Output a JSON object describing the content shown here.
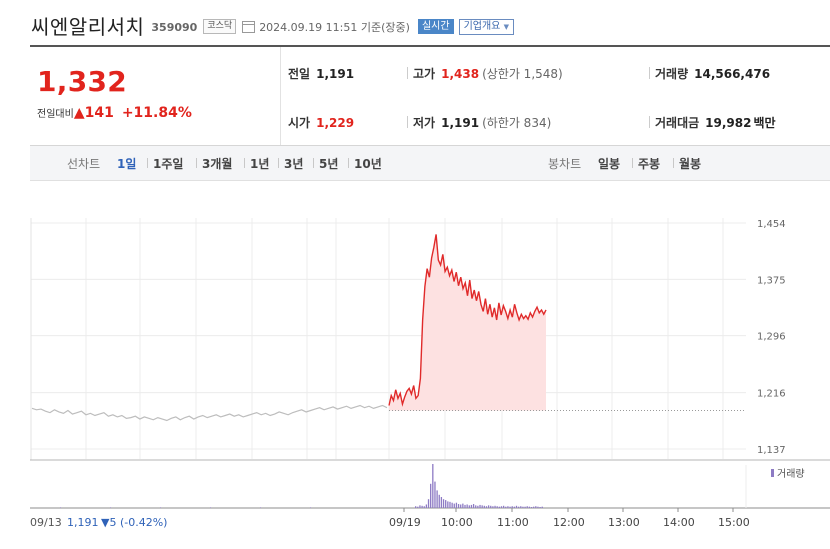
{
  "header": {
    "name": "씨엔알리서치",
    "code": "359090",
    "market": "코스닥",
    "datetime": "2024.09.19 11:51",
    "basis": "기준(장중)",
    "realtime_label": "실시간",
    "company_info_label": "기업개요"
  },
  "quote": {
    "price": "1,332",
    "change_label": "전일대비",
    "change_value": "141",
    "change_pct": "+11.84%",
    "prev_close": {
      "label": "전일",
      "value": "1,191"
    },
    "open": {
      "label": "시가",
      "value": "1,229"
    },
    "high": {
      "label": "고가",
      "value": "1,438",
      "sub": "(상한가 1,548)"
    },
    "low": {
      "label": "저가",
      "value": "1,191",
      "sub": "(하한가 834)"
    },
    "volume": {
      "label": "거래량",
      "value": "14,566,476"
    },
    "trade_value": {
      "label": "거래대금",
      "value": "19,982",
      "unit": "백만"
    },
    "colors": {
      "up": "#e1241d",
      "down": "#2f62b8"
    }
  },
  "tabs": {
    "line_label": "선차트",
    "line": [
      "1일",
      "1주일",
      "3개월",
      "1년",
      "3년",
      "5년",
      "10년"
    ],
    "active": "1일",
    "candle_label": "봉차트",
    "candle": [
      "일봉",
      "주봉",
      "월봉"
    ]
  },
  "chart_data": {
    "type": "line",
    "y_ticks": [
      "1,454",
      "1,375",
      "1,296",
      "1,216",
      "1,137"
    ],
    "ylim": [
      1137,
      1454
    ],
    "baseline": 1191,
    "prev_day": {
      "date_label": "09/13",
      "close": "1,191",
      "change": "▼5 (-0.42%)",
      "values": [
        1194,
        1192,
        1193,
        1190,
        1188,
        1192,
        1189,
        1187,
        1191,
        1186,
        1188,
        1190,
        1185,
        1187,
        1184,
        1186,
        1188,
        1183,
        1185,
        1182,
        1184,
        1180,
        1181,
        1183,
        1179,
        1182,
        1180,
        1178,
        1181,
        1179,
        1177,
        1180,
        1182,
        1178,
        1181,
        1183,
        1179,
        1182,
        1184,
        1181,
        1183,
        1185,
        1182,
        1184,
        1186,
        1183,
        1185,
        1182,
        1184,
        1186,
        1188,
        1185,
        1187,
        1184,
        1186,
        1189,
        1187,
        1185,
        1188,
        1190,
        1192,
        1189,
        1191,
        1193,
        1195,
        1192,
        1194,
        1196,
        1193,
        1195,
        1197,
        1194,
        1196,
        1198,
        1195,
        1197,
        1194,
        1196,
        1198,
        1195
      ]
    },
    "today": {
      "date_label": "09/19",
      "values": [
        1198,
        1212,
        1205,
        1220,
        1208,
        1215,
        1200,
        1210,
        1218,
        1222,
        1214,
        1226,
        1208,
        1212,
        1236,
        1318,
        1365,
        1390,
        1378,
        1405,
        1420,
        1438,
        1402,
        1395,
        1410,
        1386,
        1392,
        1380,
        1388,
        1372,
        1385,
        1366,
        1378,
        1362,
        1370,
        1352,
        1374,
        1348,
        1360,
        1345,
        1358,
        1340,
        1330,
        1348,
        1326,
        1340,
        1322,
        1335,
        1318,
        1342,
        1325,
        1338,
        1330,
        1320,
        1332,
        1322,
        1340,
        1328,
        1318,
        1326,
        1320,
        1324,
        1319,
        1328,
        1322,
        1330,
        1336,
        1328,
        1332,
        1326,
        1332
      ]
    },
    "volume": {
      "label": "거래량",
      "prev_day_values": [
        0.3,
        0.2,
        0.25,
        0.2,
        0.15,
        0.2
      ],
      "today_values": [
        4,
        3,
        6,
        5,
        4,
        8,
        20,
        55,
        100,
        60,
        40,
        30,
        25,
        20,
        18,
        15,
        14,
        12,
        10,
        12,
        9,
        8,
        10,
        7,
        8,
        6,
        7,
        9,
        6,
        5,
        7,
        6,
        5,
        4,
        6,
        5,
        4,
        5,
        4,
        3,
        4,
        5,
        3,
        4,
        3,
        4,
        3,
        5,
        3,
        4,
        3,
        3,
        4,
        3,
        2,
        3,
        4,
        3,
        2,
        3
      ]
    },
    "x_ticks": [
      "09/19",
      "10:00",
      "11:00",
      "12:00",
      "13:00",
      "14:00",
      "15:00"
    ]
  }
}
